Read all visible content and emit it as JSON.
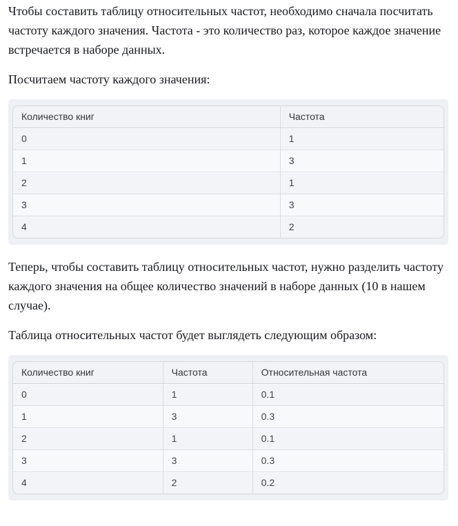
{
  "paragraphs": {
    "intro": "Чтобы составить таблицу относительных частот, необходимо сначала посчитать частоту каждого значения. Частота - это количество раз, которое каждое значение встречается в наборе данных.",
    "count_lead": "Посчитаем частоту каждого значения:",
    "relative_explain": "Теперь, чтобы составить таблицу относительных частот, нужно разделить частоту каждого значения на общее количество значений в наборе данных (10 в нашем случае).",
    "relative_lead": "Таблица относительных частот будет выглядеть следующим образом:"
  },
  "tables": {
    "frequency": {
      "headers": [
        "Количество книг",
        "Частота"
      ],
      "rows": [
        [
          "0",
          "1"
        ],
        [
          "1",
          "3"
        ],
        [
          "2",
          "1"
        ],
        [
          "3",
          "3"
        ],
        [
          "4",
          "2"
        ]
      ]
    },
    "relative": {
      "headers": [
        "Количество книг",
        "Частота",
        "Относительная частота"
      ],
      "rows": [
        [
          "0",
          "1",
          "0.1"
        ],
        [
          "1",
          "3",
          "0.3"
        ],
        [
          "2",
          "1",
          "0.1"
        ],
        [
          "3",
          "3",
          "0.3"
        ],
        [
          "4",
          "2",
          "0.2"
        ]
      ]
    }
  },
  "colors": {
    "page_background": "#ffffff",
    "table_wrapper_background": "#eff0f3",
    "table_border": "#d6d8dc",
    "header_background": "#f2f3f6",
    "row_odd_background": "#f3f4f7",
    "row_even_background": "#f8f9fb",
    "row_separator": "#dadce0",
    "body_text": "#17191d",
    "cell_text": "#3e424c"
  }
}
